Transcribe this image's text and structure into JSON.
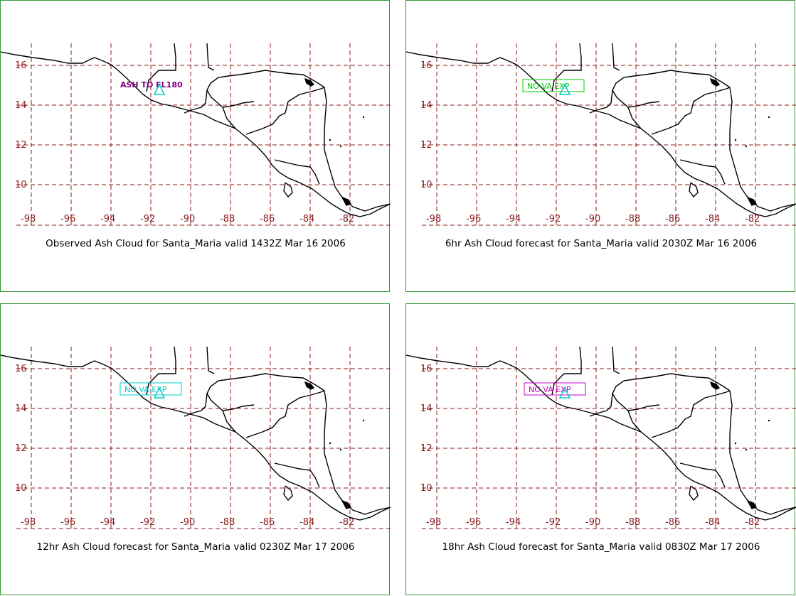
{
  "map": {
    "lat_labels": [
      "16",
      "14",
      "12",
      "10"
    ],
    "lon_labels": [
      "-98",
      "-96",
      "-94",
      "-92",
      "-90",
      "-88",
      "-86",
      "-84",
      "-82"
    ],
    "grid_color": "#8b1a1a",
    "coast_color": "#000000",
    "volcano_symbol_color": "#00cccc"
  },
  "panels": [
    {
      "caption": "Observed Ash Cloud for Santa_Maria valid 1432Z Mar 16 2006",
      "label": "ASH TO FL180",
      "label_color": "#800080",
      "label_boxed": false
    },
    {
      "caption": "6hr Ash Cloud forecast for Santa_Maria valid 2030Z Mar 16 2006",
      "label": "NO VA EXP",
      "label_color": "#00cc00",
      "label_boxed": true
    },
    {
      "caption": "12hr Ash Cloud forecast for Santa_Maria valid 0230Z Mar 17 2006",
      "label": "NO VA EXP",
      "label_color": "#00cccc",
      "label_boxed": true
    },
    {
      "caption": "18hr Ash Cloud forecast for Santa_Maria valid 0830Z Mar 17 2006",
      "label": "NO VA EXP",
      "label_color": "#cc00cc",
      "label_boxed": true
    }
  ]
}
